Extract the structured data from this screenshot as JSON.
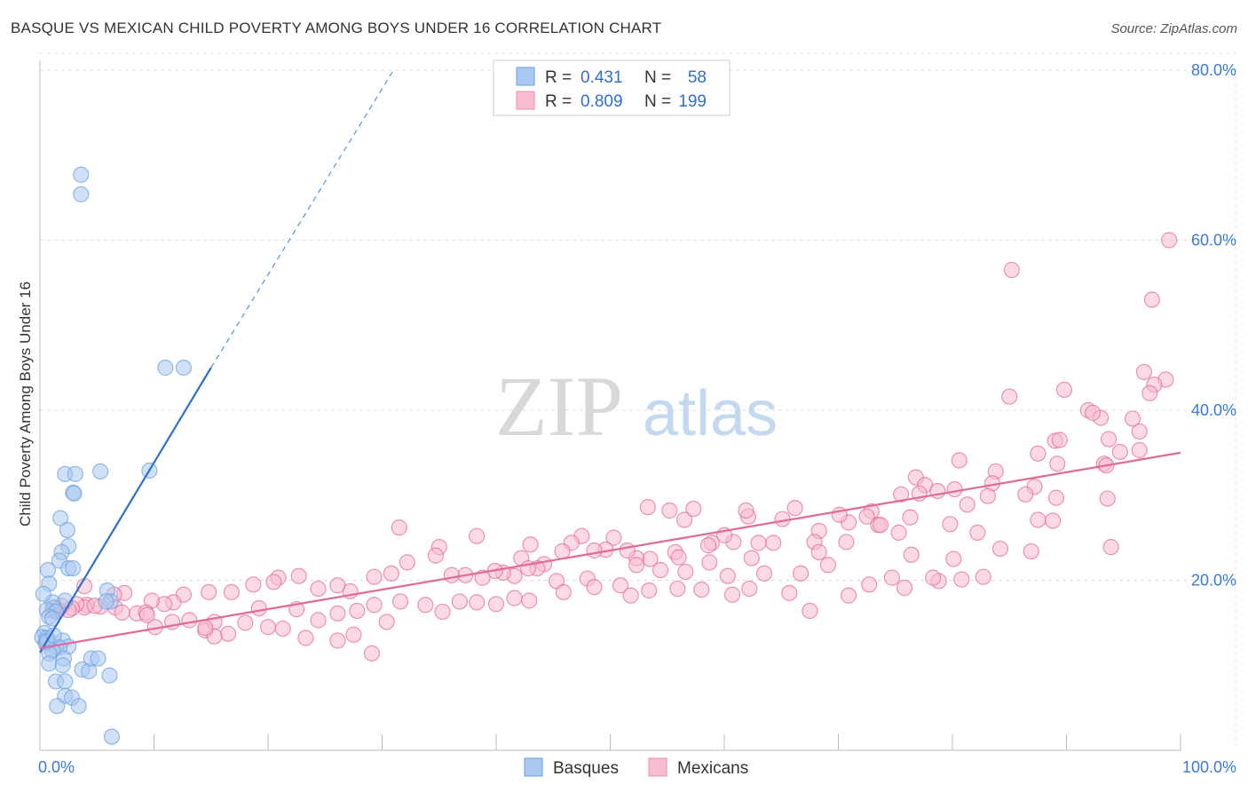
{
  "title": "BASQUE VS MEXICAN CHILD POVERTY AMONG BOYS UNDER 16 CORRELATION CHART",
  "source": "Source: ZipAtlas.com",
  "watermark": {
    "zip": "ZIP",
    "atlas": "atlas"
  },
  "legend_top": [
    {
      "name": "basques-stats",
      "r_label": "R =",
      "r_value": "0.431",
      "n_label": "N =",
      "n_value": "58",
      "color": "#aac8f0",
      "stroke": "#6a9fe0"
    },
    {
      "name": "mexicans-stats",
      "r_label": "R =",
      "r_value": "0.809",
      "n_label": "N =",
      "n_value": "199",
      "color": "#f8bcd0",
      "stroke": "#e890b0"
    }
  ],
  "legend_bottom": [
    {
      "label": "Basques",
      "color": "#aac8f0",
      "stroke": "#6a9fe0"
    },
    {
      "label": "Mexicans",
      "color": "#f8bcd0",
      "stroke": "#e890b0"
    }
  ],
  "chart_data": {
    "type": "scatter",
    "title": "BASQUE VS MEXICAN CHILD POVERTY AMONG BOYS UNDER 16 CORRELATION CHART",
    "xlabel": "",
    "ylabel": "Child Poverty Among Boys Under 16",
    "xlim": [
      0,
      100
    ],
    "ylim": [
      0,
      80
    ],
    "x_tick_labels": [
      "0.0%",
      "100.0%"
    ],
    "y_ticks": [
      20,
      40,
      60,
      80
    ],
    "y_tick_labels": [
      "20.0%",
      "40.0%",
      "60.0%",
      "80.0%"
    ],
    "grid": true,
    "series": [
      {
        "name": "Basques",
        "color": "#6a9fe0",
        "fill": "#aac8f0",
        "trend": {
          "x0": 0,
          "y0": 11.5,
          "x1": 15,
          "y1": 45,
          "dash_to_x": 31,
          "dash_to_y": 80
        },
        "points": [
          [
            3.6,
            67.7
          ],
          [
            3.6,
            65.4
          ],
          [
            11,
            45
          ],
          [
            12.6,
            45
          ],
          [
            5.3,
            32.8
          ],
          [
            9.6,
            32.9
          ],
          [
            2.2,
            32.5
          ],
          [
            3.1,
            32.5
          ],
          [
            2.9,
            30.3
          ],
          [
            3,
            30.2
          ],
          [
            1.8,
            27.3
          ],
          [
            2.4,
            25.9
          ],
          [
            2.5,
            24
          ],
          [
            1.9,
            23.3
          ],
          [
            1.7,
            22.3
          ],
          [
            2.5,
            21.4
          ],
          [
            2.9,
            21.4
          ],
          [
            0.7,
            21.2
          ],
          [
            0.8,
            19.6
          ],
          [
            2.2,
            17.6
          ],
          [
            5.9,
            18.8
          ],
          [
            6.2,
            17.5
          ],
          [
            1.1,
            17.4
          ],
          [
            0.3,
            18.4
          ],
          [
            5.8,
            17.5
          ],
          [
            1.2,
            16.8
          ],
          [
            0.6,
            16.5
          ],
          [
            1.4,
            16.3
          ],
          [
            0.8,
            15.7
          ],
          [
            1.1,
            15.5
          ],
          [
            0.4,
            13.8
          ],
          [
            0.2,
            13.3
          ],
          [
            0.7,
            13
          ],
          [
            2,
            12.9
          ],
          [
            0.5,
            12.6
          ],
          [
            2.5,
            12.2
          ],
          [
            1.4,
            12.1
          ],
          [
            1.7,
            12.1
          ],
          [
            1.1,
            11.7
          ],
          [
            0.8,
            11.4
          ],
          [
            2.1,
            10.8
          ],
          [
            0.8,
            10.2
          ],
          [
            2,
            10
          ],
          [
            3.7,
            9.5
          ],
          [
            4.3,
            9.3
          ],
          [
            4.5,
            10.8
          ],
          [
            5.1,
            10.8
          ],
          [
            6.1,
            8.8
          ],
          [
            1.4,
            8.1
          ],
          [
            2.2,
            8.1
          ],
          [
            2.2,
            6.4
          ],
          [
            2.8,
            6.2
          ],
          [
            1.5,
            5.2
          ],
          [
            3.4,
            5.2
          ],
          [
            6.3,
            1.6
          ],
          [
            0.6,
            13.2
          ],
          [
            0.6,
            12.8
          ],
          [
            1.2,
            13.5
          ]
        ]
      },
      {
        "name": "Mexicans",
        "color": "#e26a96",
        "fill": "#f8bcd0",
        "trend": {
          "x0": 0,
          "y0": 12,
          "x1": 100,
          "y1": 35
        },
        "points": [
          [
            99,
            60
          ],
          [
            85.2,
            56.5
          ],
          [
            97.5,
            53
          ],
          [
            96.8,
            44.5
          ],
          [
            98.7,
            43.6
          ],
          [
            97.7,
            43
          ],
          [
            97.3,
            42
          ],
          [
            95.8,
            39
          ],
          [
            85,
            41.6
          ],
          [
            89.8,
            42.4
          ],
          [
            91.9,
            40
          ],
          [
            93,
            39.1
          ],
          [
            92.3,
            39.7
          ],
          [
            96.4,
            37.5
          ],
          [
            96.4,
            35.3
          ],
          [
            93.7,
            36.6
          ],
          [
            89,
            36.4
          ],
          [
            89.4,
            36.5
          ],
          [
            87.5,
            34.9
          ],
          [
            94.7,
            35.1
          ],
          [
            93.3,
            33.7
          ],
          [
            83.8,
            32.8
          ],
          [
            89.2,
            33.7
          ],
          [
            93.5,
            33.5
          ],
          [
            80.6,
            34.1
          ],
          [
            76.8,
            32.1
          ],
          [
            77.6,
            31.2
          ],
          [
            80.2,
            30.7
          ],
          [
            83.5,
            31.4
          ],
          [
            87.2,
            31
          ],
          [
            89.1,
            29.7
          ],
          [
            93.6,
            29.6
          ],
          [
            75.5,
            30.1
          ],
          [
            78.7,
            30.5
          ],
          [
            77.1,
            30.2
          ],
          [
            81.3,
            28.9
          ],
          [
            83.1,
            29.9
          ],
          [
            86.4,
            30.1
          ],
          [
            72.9,
            28.1
          ],
          [
            72.5,
            27.5
          ],
          [
            79.8,
            26.6
          ],
          [
            76.3,
            27.4
          ],
          [
            87.5,
            27.1
          ],
          [
            88.8,
            27
          ],
          [
            82.2,
            25.6
          ],
          [
            73.5,
            26.5
          ],
          [
            73.7,
            26.5
          ],
          [
            70.9,
            26.8
          ],
          [
            70.1,
            27.7
          ],
          [
            75.3,
            25.6
          ],
          [
            68.3,
            25.8
          ],
          [
            65.1,
            27.2
          ],
          [
            62.1,
            27.5
          ],
          [
            61.9,
            28.2
          ],
          [
            66.2,
            28.5
          ],
          [
            60.8,
            24.5
          ],
          [
            57.3,
            28.4
          ],
          [
            55.2,
            28.2
          ],
          [
            53.3,
            28.6
          ],
          [
            56.5,
            27.1
          ],
          [
            70.7,
            24.5
          ],
          [
            67.9,
            24.5
          ],
          [
            64.3,
            24.4
          ],
          [
            63,
            24.4
          ],
          [
            60,
            25.3
          ],
          [
            58.9,
            24.4
          ],
          [
            58.6,
            24.1
          ],
          [
            55.7,
            23.3
          ],
          [
            84.2,
            23.7
          ],
          [
            86.9,
            23.4
          ],
          [
            80.1,
            22.5
          ],
          [
            76.4,
            23
          ],
          [
            93.9,
            23.9
          ],
          [
            68.3,
            23.3
          ],
          [
            62.4,
            22.6
          ],
          [
            58.7,
            22.1
          ],
          [
            56,
            22.7
          ],
          [
            54.4,
            21.2
          ],
          [
            53.5,
            22.5
          ],
          [
            52.3,
            22.6
          ],
          [
            51.5,
            23.5
          ],
          [
            50.3,
            25
          ],
          [
            49.6,
            23.6
          ],
          [
            47.5,
            25.2
          ],
          [
            46.6,
            24.4
          ],
          [
            45.8,
            23.4
          ],
          [
            43,
            24.2
          ],
          [
            42.2,
            22.6
          ],
          [
            38.3,
            25.2
          ],
          [
            35,
            23.9
          ],
          [
            31.5,
            26.2
          ],
          [
            48.6,
            23.5
          ],
          [
            52.3,
            21.8
          ],
          [
            56.6,
            21
          ],
          [
            60.3,
            20.5
          ],
          [
            63.5,
            20.8
          ],
          [
            66.7,
            20.8
          ],
          [
            69.1,
            21.8
          ],
          [
            74.7,
            20.3
          ],
          [
            78.8,
            19.9
          ],
          [
            48,
            20.2
          ],
          [
            45.3,
            19.9
          ],
          [
            44.2,
            21.9
          ],
          [
            43.6,
            21.4
          ],
          [
            42.8,
            21.4
          ],
          [
            41.6,
            20.5
          ],
          [
            40.6,
            20.9
          ],
          [
            39.9,
            21.1
          ],
          [
            38.8,
            20.3
          ],
          [
            37.3,
            20.6
          ],
          [
            36.1,
            20.6
          ],
          [
            34.7,
            22.9
          ],
          [
            32.2,
            22.1
          ],
          [
            30.8,
            20.8
          ],
          [
            29.3,
            20.4
          ],
          [
            27.2,
            18.7
          ],
          [
            26.1,
            19.4
          ],
          [
            24.4,
            19
          ],
          [
            22.7,
            20.5
          ],
          [
            20.9,
            20.3
          ],
          [
            20.5,
            19.8
          ],
          [
            18.7,
            19.5
          ],
          [
            16.8,
            18.6
          ],
          [
            14.8,
            18.6
          ],
          [
            12.6,
            18.3
          ],
          [
            11.7,
            17.4
          ],
          [
            10.9,
            17.2
          ],
          [
            9.8,
            17.6
          ],
          [
            7.4,
            18.5
          ],
          [
            6.5,
            18.3
          ],
          [
            5.3,
            16.9
          ],
          [
            4.1,
            17.1
          ],
          [
            3.9,
            16.8
          ],
          [
            3.2,
            17.2
          ],
          [
            2.8,
            16.7
          ],
          [
            2.5,
            16.5
          ],
          [
            1.9,
            17
          ],
          [
            1.6,
            16.5
          ],
          [
            1.3,
            16.6
          ],
          [
            1.1,
            16.4
          ],
          [
            3.9,
            19.3
          ],
          [
            4.8,
            17
          ],
          [
            6.6,
            16.8
          ],
          [
            7.2,
            16.2
          ],
          [
            8.5,
            16.1
          ],
          [
            9.3,
            16.2
          ],
          [
            9.4,
            15.9
          ],
          [
            10.1,
            14.5
          ],
          [
            11.6,
            15.1
          ],
          [
            13.1,
            15.3
          ],
          [
            14.5,
            14.1
          ],
          [
            15.3,
            15.1
          ],
          [
            16.5,
            13.7
          ],
          [
            19.2,
            16.7
          ],
          [
            22.5,
            16.6
          ],
          [
            24.4,
            15.3
          ],
          [
            26.1,
            16.1
          ],
          [
            27.8,
            16.4
          ],
          [
            29.3,
            17.1
          ],
          [
            31.6,
            17.5
          ],
          [
            33.8,
            17.1
          ],
          [
            35.3,
            16.3
          ],
          [
            36.8,
            17.5
          ],
          [
            38.3,
            17.4
          ],
          [
            40,
            17.2
          ],
          [
            41.6,
            17.9
          ],
          [
            42.9,
            17.6
          ],
          [
            45.9,
            18.6
          ],
          [
            48.6,
            19.2
          ],
          [
            50.9,
            19.4
          ],
          [
            51.8,
            18.2
          ],
          [
            53.4,
            18.8
          ],
          [
            55.9,
            19
          ],
          [
            58,
            18.9
          ],
          [
            60.7,
            18.3
          ],
          [
            62.2,
            19
          ],
          [
            65.7,
            18.5
          ],
          [
            67.5,
            16.4
          ],
          [
            70.9,
            18.2
          ],
          [
            72.7,
            19.5
          ],
          [
            75.8,
            19.1
          ],
          [
            78.3,
            20.3
          ],
          [
            80.8,
            20.1
          ],
          [
            82.7,
            20.4
          ],
          [
            18,
            15
          ],
          [
            20,
            14.5
          ],
          [
            21.3,
            14.3
          ],
          [
            15.3,
            13.4
          ],
          [
            14.5,
            14.4
          ],
          [
            23.3,
            13.2
          ],
          [
            26.1,
            12.9
          ],
          [
            27.5,
            13.6
          ],
          [
            30.4,
            15.1
          ],
          [
            29.1,
            11.4
          ]
        ]
      }
    ]
  }
}
